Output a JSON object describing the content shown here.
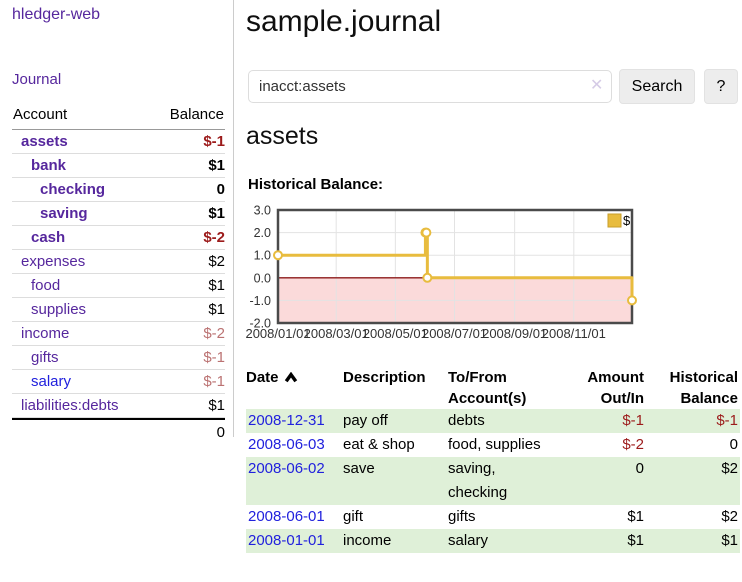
{
  "app": {
    "title": "hledger-web"
  },
  "sidebar": {
    "journal_link": "Journal",
    "table": {
      "account_header": "Account",
      "balance_header": "Balance",
      "rows": [
        {
          "account": "assets",
          "balance": "$-1"
        },
        {
          "account": "bank",
          "balance": "$1"
        },
        {
          "account": "checking",
          "balance": "0"
        },
        {
          "account": "saving",
          "balance": "$1"
        },
        {
          "account": "cash",
          "balance": "$-2"
        },
        {
          "account": "expenses",
          "balance": "$2"
        },
        {
          "account": "food",
          "balance": "$1"
        },
        {
          "account": "supplies",
          "balance": "$1"
        },
        {
          "account": "income",
          "balance": "$-2"
        },
        {
          "account": "gifts",
          "balance": "$-1"
        },
        {
          "account": "salary",
          "balance": "$-1"
        },
        {
          "account": "liabilities:debts",
          "balance": "$1"
        }
      ],
      "total": "0"
    }
  },
  "header": {
    "title": "sample.journal"
  },
  "search": {
    "value": "inacct:assets",
    "clear_icon": "✕",
    "button_label": "Search",
    "help_label": "?"
  },
  "account_page": {
    "title": "assets",
    "chart_label": "Historical Balance:"
  },
  "chart_data": {
    "type": "line",
    "title": "Historical Balance:",
    "step": true,
    "series": [
      {
        "name": "$",
        "color": "#e8bc3e",
        "points": [
          {
            "date": "2008-01-01",
            "value": 1
          },
          {
            "date": "2008-06-01",
            "value": 2
          },
          {
            "date": "2008-06-02",
            "value": 2
          },
          {
            "date": "2008-06-03",
            "value": 0
          },
          {
            "date": "2008-12-31",
            "value": -1
          }
        ]
      }
    ],
    "xlim": [
      "2008-01-01",
      "2008-12-31"
    ],
    "ylim": [
      -2,
      3
    ],
    "yticks": [
      3.0,
      2.0,
      1.0,
      0.0,
      -1.0,
      -2.0
    ],
    "xticks": [
      "2008/01/01",
      "2008/03/01",
      "2008/05/01",
      "2008/07/01",
      "2008/09/01",
      "2008/11/01"
    ],
    "legend_position": "top-right",
    "grid": true,
    "colors": {
      "negative_region": "#fbdada",
      "zero_line": "#8d1a1a",
      "grid_line": "#e3e3e3",
      "plot_border": "#4a4a4a",
      "marker_fill": "#ffffff",
      "legend_border": "#c79e2b"
    }
  },
  "register": {
    "headers": {
      "date": "Date",
      "description": "Description",
      "account": "To/From Account(s)",
      "amount": "Amount Out/In",
      "balance": "Historical Balance"
    },
    "rows": [
      {
        "date": "2008-12-31",
        "description": "pay off",
        "account": "debts",
        "amount": "$-1",
        "balance": "$-1"
      },
      {
        "date": "2008-06-03",
        "description": "eat & shop",
        "account": "food, supplies",
        "amount": "$-2",
        "balance": "0"
      },
      {
        "date": "2008-06-02",
        "description": "save",
        "account": "saving, checking",
        "amount": "0",
        "balance": "$2"
      },
      {
        "date": "2008-06-01",
        "description": "gift",
        "account": "gifts",
        "amount": "$1",
        "balance": "$2"
      },
      {
        "date": "2008-01-01",
        "description": "income",
        "account": "salary",
        "amount": "$1",
        "balance": "$1"
      }
    ]
  }
}
